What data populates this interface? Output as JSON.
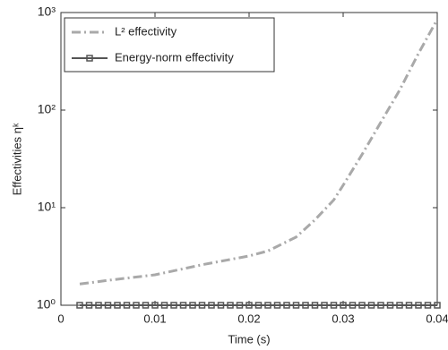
{
  "chart_data": {
    "type": "line",
    "xlabel": "Time (s)",
    "ylabel": "Effectivities ηᵏ",
    "yscale": "log",
    "xlim": [
      0,
      0.04
    ],
    "xticks": [
      0,
      0.01,
      0.02,
      0.03,
      0.04
    ],
    "ylim": [
      1,
      1000
    ],
    "yticks": [
      {
        "value": 1,
        "label": "10⁰"
      },
      {
        "value": 10,
        "label": "10¹"
      },
      {
        "value": 100,
        "label": "10²"
      },
      {
        "value": 1000,
        "label": "10³"
      }
    ],
    "legend": "upper left",
    "series": [
      {
        "name": "L² effectivity",
        "color": "#a9a9a9",
        "style": "dash-dot",
        "x": [
          0.002,
          0.005,
          0.01,
          0.015,
          0.02,
          0.022,
          0.025,
          0.027,
          0.029,
          0.03,
          0.032,
          0.034,
          0.036,
          0.038,
          0.04
        ],
        "values": [
          1.65,
          1.8,
          2.05,
          2.6,
          3.2,
          3.6,
          5,
          7.5,
          12,
          17,
          35,
          75,
          160,
          380,
          850
        ]
      },
      {
        "name": "Energy-norm effectivity",
        "color": "#555555",
        "style": "solid",
        "marker": "square",
        "x": [
          0.002,
          0.003,
          0.004,
          0.005,
          0.006,
          0.007,
          0.008,
          0.009,
          0.01,
          0.011,
          0.012,
          0.013,
          0.014,
          0.015,
          0.016,
          0.017,
          0.018,
          0.019,
          0.02,
          0.021,
          0.022,
          0.023,
          0.024,
          0.025,
          0.026,
          0.027,
          0.028,
          0.029,
          0.03,
          0.031,
          0.032,
          0.033,
          0.034,
          0.035,
          0.036,
          0.037,
          0.038,
          0.039,
          0.04
        ],
        "values": [
          1,
          1,
          1,
          1,
          1,
          1,
          1,
          1,
          1,
          1,
          1,
          1,
          1,
          1,
          1,
          1,
          1,
          1,
          1,
          1,
          1,
          1,
          1,
          1,
          1,
          1,
          1,
          1,
          1,
          1,
          1,
          1,
          1,
          1,
          1,
          1,
          1,
          1,
          1
        ]
      }
    ]
  }
}
